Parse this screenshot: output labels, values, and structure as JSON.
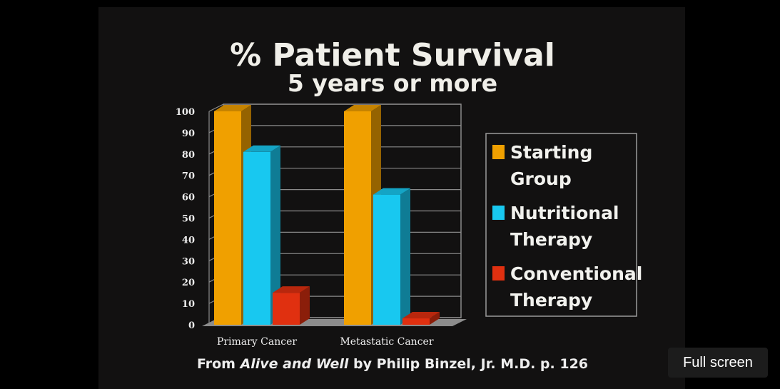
{
  "chart_data": {
    "type": "bar",
    "title": "% Patient Survival",
    "subtitle": "5 years or more",
    "categories": [
      "Primary Cancer",
      "Metastatic Cancer"
    ],
    "series": [
      {
        "name": "Starting Group",
        "legend_lines": [
          "Starting",
          "Group"
        ],
        "values": [
          100,
          100
        ],
        "color": "#f0a000"
      },
      {
        "name": "Nutritional Therapy",
        "legend_lines": [
          "Nutritional",
          "Therapy"
        ],
        "values": [
          81,
          61
        ],
        "color": "#18c8f0"
      },
      {
        "name": "Conventional Therapy",
        "legend_lines": [
          "Conventional",
          "Therapy"
        ],
        "values": [
          15,
          3
        ],
        "color": "#e03010"
      }
    ],
    "yticks": [
      "0",
      "10",
      "20",
      "30",
      "40",
      "50",
      "60",
      "70",
      "80",
      "90",
      "100"
    ],
    "ylim": [
      0,
      100
    ],
    "grid": true,
    "legend_position": "right"
  },
  "source": {
    "prefix": "From ",
    "book": "Alive and Well",
    "suffix": " by Philip Binzel, Jr. M.D. p. 126"
  },
  "player": {
    "fullscreen_label": "Full screen"
  }
}
